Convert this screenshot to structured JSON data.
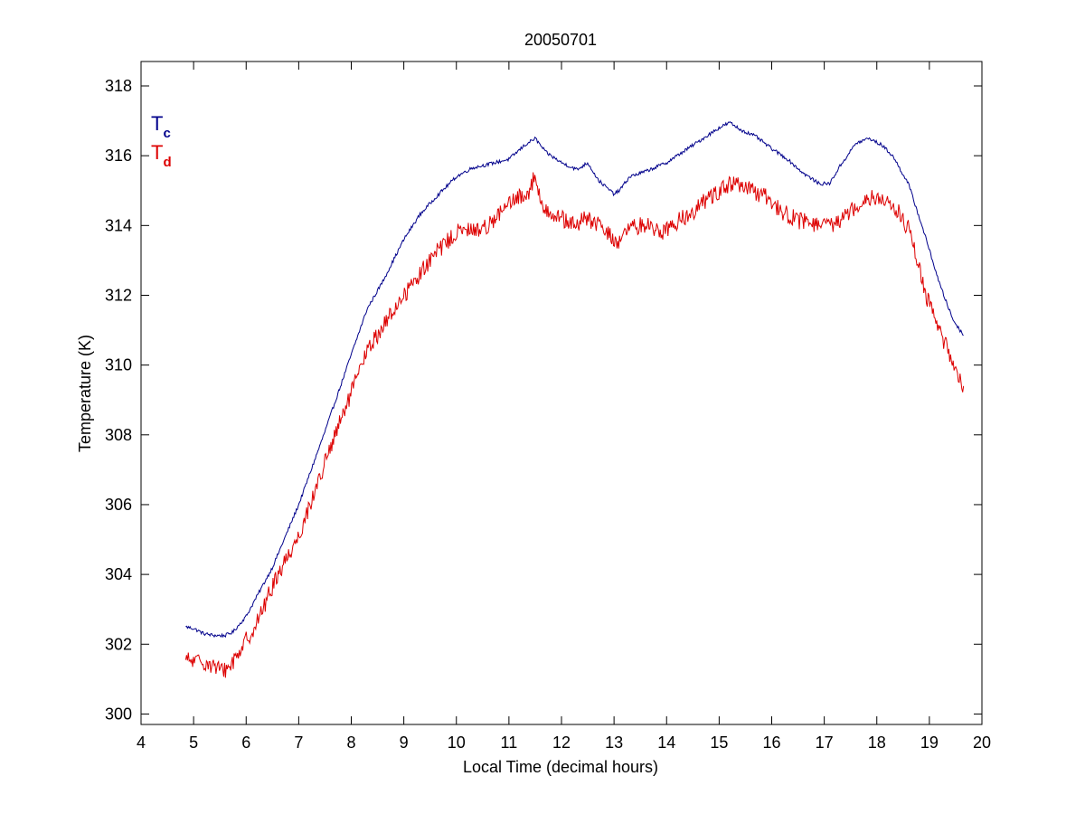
{
  "chart_data": {
    "type": "line",
    "title": "20050701",
    "xlabel": "Local Time (decimal hours)",
    "ylabel": "Temperature (K)",
    "xlim": [
      4,
      20
    ],
    "ylim": [
      299.7,
      318.7
    ],
    "xticks": [
      4,
      5,
      6,
      7,
      8,
      9,
      10,
      11,
      12,
      13,
      14,
      15,
      16,
      17,
      18,
      19,
      20
    ],
    "yticks": [
      300,
      302,
      304,
      306,
      308,
      310,
      312,
      314,
      316,
      318
    ],
    "grid": false,
    "legend_placement": "top-left",
    "series": [
      {
        "name": "T",
        "subscript": "c",
        "color": "#00008b",
        "noise": 0.05,
        "x": [
          4.85,
          5.0,
          5.2,
          5.4,
          5.6,
          5.75,
          6.0,
          6.5,
          7.0,
          7.5,
          8.0,
          8.3,
          8.6,
          9.0,
          9.3,
          9.6,
          10.0,
          10.3,
          10.6,
          11.0,
          11.3,
          11.5,
          11.7,
          12.0,
          12.3,
          12.5,
          12.7,
          13.0,
          13.1,
          13.3,
          13.6,
          14.0,
          14.3,
          14.6,
          15.0,
          15.2,
          15.4,
          15.7,
          16.0,
          16.3,
          16.6,
          16.9,
          17.1,
          17.3,
          17.6,
          17.85,
          18.1,
          18.3,
          18.6,
          18.9,
          19.2,
          19.45,
          19.65
        ],
        "y": [
          302.5,
          302.45,
          302.3,
          302.25,
          302.25,
          302.35,
          302.8,
          304.2,
          306.0,
          308.1,
          310.3,
          311.6,
          312.4,
          313.6,
          314.3,
          314.8,
          315.4,
          315.65,
          315.75,
          315.9,
          316.3,
          316.5,
          316.1,
          315.8,
          315.6,
          315.8,
          315.3,
          314.9,
          315.0,
          315.4,
          315.55,
          315.8,
          316.1,
          316.4,
          316.8,
          316.95,
          316.75,
          316.55,
          316.2,
          315.9,
          315.5,
          315.2,
          315.2,
          315.7,
          316.35,
          316.5,
          316.3,
          316.0,
          315.2,
          313.8,
          312.3,
          311.3,
          310.85
        ]
      },
      {
        "name": "T",
        "subscript": "d",
        "color": "#dd0000",
        "noise": 0.25,
        "x": [
          4.85,
          5.0,
          5.2,
          5.35,
          5.5,
          5.65,
          5.85,
          6.2,
          6.6,
          7.0,
          7.5,
          8.0,
          8.3,
          8.6,
          9.0,
          9.3,
          9.6,
          10.0,
          10.2,
          10.5,
          10.8,
          11.0,
          11.2,
          11.4,
          11.5,
          11.6,
          11.9,
          12.2,
          12.5,
          12.8,
          13.05,
          13.3,
          13.6,
          13.9,
          14.2,
          14.5,
          14.8,
          15.1,
          15.3,
          15.6,
          15.9,
          16.2,
          16.5,
          16.8,
          17.1,
          17.4,
          17.7,
          17.9,
          18.15,
          18.4,
          18.6,
          18.8,
          19.0,
          19.3,
          19.5,
          19.65
        ],
        "y": [
          301.55,
          301.5,
          301.5,
          301.4,
          301.25,
          301.3,
          301.75,
          302.6,
          304.0,
          305.1,
          307.2,
          309.2,
          310.4,
          311.1,
          312.0,
          312.6,
          313.2,
          313.8,
          313.85,
          313.9,
          314.3,
          314.6,
          314.8,
          315.0,
          315.5,
          314.6,
          314.3,
          314.0,
          314.2,
          313.9,
          313.5,
          313.9,
          314.05,
          313.8,
          314.1,
          314.4,
          314.8,
          315.1,
          315.2,
          315.0,
          314.8,
          314.4,
          314.15,
          314.05,
          313.95,
          314.3,
          314.7,
          314.85,
          314.7,
          314.4,
          313.9,
          312.8,
          311.7,
          310.6,
          309.9,
          309.4
        ]
      }
    ]
  }
}
